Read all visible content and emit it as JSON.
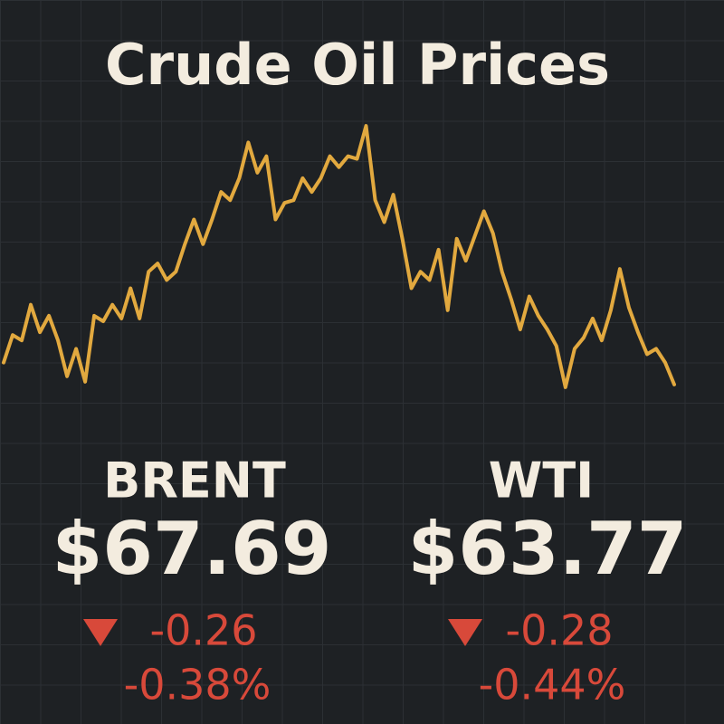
{
  "chart_data": {
    "type": "line",
    "title": "Crude Oil Prices",
    "color": "#e2a93f",
    "ylim": [
      0,
      100
    ],
    "values": [
      11,
      21,
      19,
      32,
      22,
      28,
      19,
      6,
      16,
      4,
      28,
      26,
      32,
      27,
      38,
      27,
      44,
      47,
      41,
      44,
      54,
      63,
      54,
      63,
      73,
      70,
      78,
      91,
      80,
      86,
      63,
      69,
      70,
      78,
      73,
      78,
      86,
      82,
      86,
      85,
      97,
      70,
      62,
      72,
      56,
      38,
      44,
      41,
      52,
      30,
      56,
      48,
      57,
      66,
      58,
      44,
      34,
      23,
      35,
      28,
      23,
      17,
      2,
      16,
      20,
      27,
      19,
      30,
      45,
      31,
      22,
      14,
      16,
      11,
      3
    ]
  },
  "quotes": [
    {
      "name": "BRENT",
      "price": "$67.69",
      "change": "-0.26",
      "change_percent": "-0.38%"
    },
    {
      "name": "WTI",
      "price": "$63.77",
      "change": "-0.28",
      "change_percent": "-0.44%"
    }
  ]
}
